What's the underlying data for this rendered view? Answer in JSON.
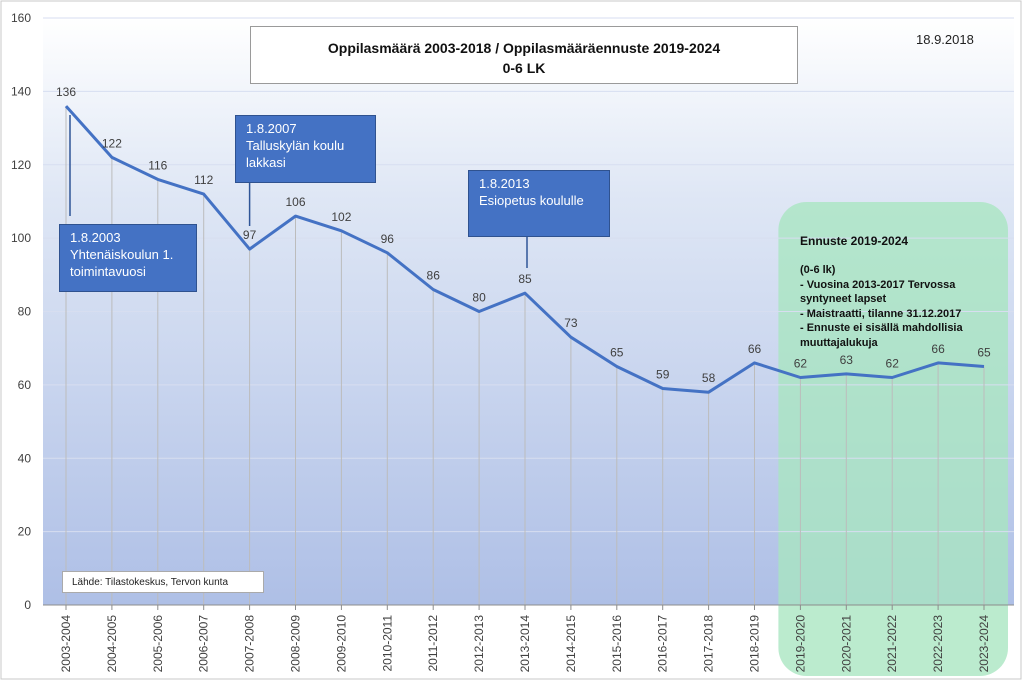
{
  "chart_data": {
    "type": "line",
    "title": "Oppilasmäärä 2003-2018 / Oppilasmääräennuste 2019-2024",
    "subtitle": "0-6 LK",
    "date": "18.9.2018",
    "categories": [
      "2003-2004",
      "2004-2005",
      "2005-2006",
      "2006-2007",
      "2007-2008",
      "2008-2009",
      "2009-2010",
      "2010-2011",
      "2011-2012",
      "2012-2013",
      "2013-2014",
      "2014-2015",
      "2015-2016",
      "2016-2017",
      "2017-2018",
      "2018-2019",
      "2019-2020",
      "2020-2021",
      "2021-2022",
      "2022-2023",
      "2023-2024"
    ],
    "series": [
      {
        "values": [
          136,
          122,
          116,
          112,
          97,
          106,
          102,
          96,
          86,
          80,
          85,
          73,
          65,
          59,
          58,
          66,
          62,
          63,
          62,
          66,
          65
        ]
      }
    ],
    "ylim": [
      0,
      160
    ],
    "yticks": [
      0,
      20,
      40,
      60,
      80,
      100,
      120,
      140,
      160
    ],
    "grid": true,
    "line_color": "#4472c4",
    "annotations": [
      {
        "id": "ann-2003",
        "category": "2003-2004",
        "lines": [
          "1.8.2003",
          "Yhtenäiskoulun 1.",
          "toimintavuosi"
        ]
      },
      {
        "id": "ann-2007",
        "category": "2007-2008",
        "lines": [
          "1.8.2007",
          "Talluskylän koulu",
          "lakkasi"
        ]
      },
      {
        "id": "ann-2013",
        "category": "2013-2014",
        "lines": [
          "1.8.2013",
          "Esiopetus koululle"
        ]
      }
    ],
    "forecast": {
      "start": "2019-2020",
      "end": "2023-2024",
      "title": "Ennuste 2019-2024",
      "lines": [
        "(0-6 lk)",
        "- Vuosina 2013-2017 Tervossa",
        "syntyneet lapset",
        "- Maistraatti, tilanne 31.12.2017",
        "- Ennuste ei sisällä mahdollisia",
        "muuttajalukuja"
      ],
      "color": "#a8e6c0"
    },
    "source": "Lähde: Tilastokeskus, Tervon kunta"
  }
}
